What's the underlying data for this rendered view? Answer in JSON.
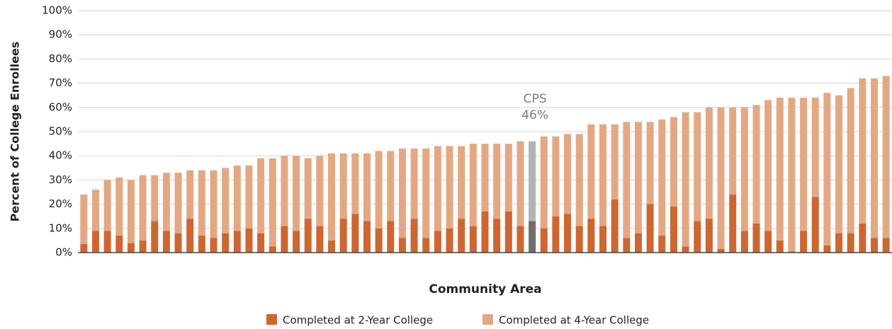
{
  "chart_data": {
    "type": "stacked_bar",
    "x_label": "Community Area",
    "y_label": "Percent of College Enrollees",
    "categories": [
      null,
      null,
      null,
      null,
      null,
      null,
      null,
      null,
      null,
      null,
      null,
      null,
      null,
      null,
      null,
      null,
      null,
      null,
      null,
      null,
      null,
      null,
      null,
      null,
      null,
      null,
      null,
      null,
      null,
      null,
      null,
      null,
      null,
      null,
      null,
      null,
      null,
      null,
      null,
      null,
      null,
      null,
      null,
      null,
      null,
      null,
      null,
      null,
      null,
      null,
      null,
      null,
      null,
      null,
      null,
      null,
      null,
      null,
      null,
      null,
      null,
      null,
      null,
      null,
      null,
      null,
      null,
      null,
      null
    ],
    "series": [
      {
        "name": "Completed at 2-Year College",
        "color": "#cd6631",
        "values": [
          3.5,
          9,
          9,
          7,
          4,
          5,
          13,
          9,
          8,
          14,
          7,
          6,
          8,
          9,
          10,
          8,
          2.5,
          11,
          9,
          14,
          11,
          5,
          14,
          16,
          13,
          10,
          13,
          6,
          14,
          6,
          9,
          10,
          14,
          11,
          17,
          14,
          17,
          11,
          13,
          10,
          15,
          16,
          11,
          14,
          11,
          22,
          6,
          8,
          20,
          7,
          19,
          2.5,
          13,
          14,
          1.5,
          24,
          9,
          12,
          9,
          5,
          0.5,
          9,
          23,
          3,
          8,
          8,
          12,
          6,
          6
        ]
      },
      {
        "name": "Completed at 4-Year College",
        "color": "#e3a883",
        "values": [
          20.5,
          17,
          21,
          24,
          26,
          27,
          19,
          24,
          25,
          20,
          27,
          28,
          27,
          27,
          26,
          31,
          36.5,
          29,
          31,
          25,
          29,
          36,
          27,
          25,
          28,
          32,
          29,
          37,
          29,
          37,
          35,
          34,
          30,
          34,
          28,
          31,
          28,
          35,
          33,
          38,
          33,
          33,
          38,
          39,
          42,
          31,
          48,
          46,
          34,
          48,
          37,
          55.5,
          45,
          46,
          58.5,
          36,
          51,
          49,
          54,
          59,
          63.5,
          55,
          41,
          63,
          57,
          60,
          60,
          66,
          67
        ]
      }
    ],
    "annotation": {
      "label": "CPS",
      "value_label": "46%",
      "value": 46,
      "index": 38,
      "colors": [
        "#6e6e6e",
        "#b4b4b4"
      ]
    },
    "ylim": [
      0,
      100
    ],
    "yticks": [
      {
        "value": 0,
        "label": "0%"
      },
      {
        "value": 10,
        "label": "10%"
      },
      {
        "value": 20,
        "label": "20%"
      },
      {
        "value": 30,
        "label": "30%"
      },
      {
        "value": 40,
        "label": "40%"
      },
      {
        "value": 50,
        "label": "50%"
      },
      {
        "value": 60,
        "label": "60%"
      },
      {
        "value": 70,
        "label": "70%"
      },
      {
        "value": 80,
        "label": "80%"
      },
      {
        "value": 90,
        "label": "90%"
      },
      {
        "value": 100,
        "label": "100%"
      }
    ],
    "grid": true,
    "legend": "bottom"
  }
}
